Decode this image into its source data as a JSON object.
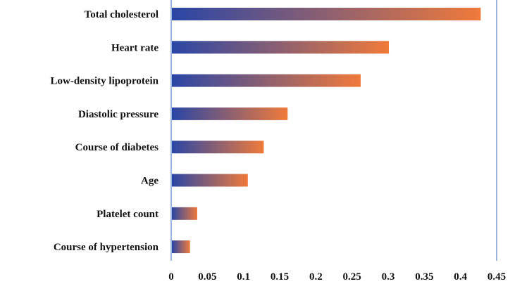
{
  "chart_data": {
    "type": "bar",
    "orientation": "horizontal",
    "categories": [
      "Total cholesterol",
      "Heart rate",
      "Low-density lipoprotein",
      "Diastolic pressure",
      "Course of diabetes",
      "Age",
      "Platelet count",
      "Course of hypertension"
    ],
    "values": [
      0.428,
      0.301,
      0.262,
      0.161,
      0.128,
      0.106,
      0.036,
      0.026
    ],
    "xlim": [
      0,
      0.45
    ],
    "x_ticks": [
      "0",
      "0.05",
      "0.1",
      "0.15",
      "0.2",
      "0.25",
      "0.3",
      "0.35",
      "0.4",
      "0.45"
    ],
    "title": "",
    "xlabel": "",
    "ylabel": "",
    "grid": false,
    "bar_gradient": [
      "#2a46a6",
      "#f07a3a"
    ],
    "axis_color": "#7a9bd0"
  }
}
